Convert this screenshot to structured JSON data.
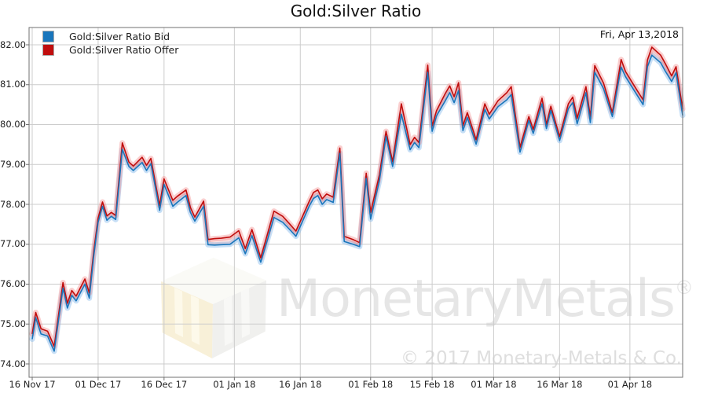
{
  "title": "Gold:Silver Ratio",
  "annotation_date": "Fri, Apr 13,2018",
  "legend": [
    {
      "label": "Gold:Silver Ratio Bid",
      "color": "#1976bc"
    },
    {
      "label": "Gold:Silver Ratio Offer",
      "color": "#c00d0d"
    }
  ],
  "watermark": {
    "brand": "MonetaryMetals",
    "reg": "®",
    "copyright": "© 2017 Monetary-Metals & Co."
  },
  "colors": {
    "bid_line": "#1976bc",
    "offer_line": "#c00d0d",
    "bid_glow": "rgba(130,185,235,0.45)",
    "offer_glow": "rgba(242,140,140,0.42)",
    "spread_fill": "rgba(230,85,85,0.15)",
    "grid": "#cccccc",
    "frame": "#707070",
    "background": "#ffffff"
  },
  "chart_data": {
    "type": "line",
    "title": "Gold:Silver Ratio",
    "xlabel": "",
    "ylabel": "",
    "grid": true,
    "legend_position": "top-left",
    "annotation": "Fri, Apr 13,2018",
    "x_axis": {
      "unit": "days since 16 Nov 2017",
      "range_days": [
        0,
        148
      ],
      "tick_days": [
        0,
        15,
        30,
        46,
        61,
        77,
        91,
        105,
        120,
        136
      ],
      "tick_labels": [
        "16 Nov 17",
        "01 Dec 17",
        "16 Dec 17",
        "01 Jan 18",
        "16 Jan 18",
        "01 Feb 18",
        "15 Feb 18",
        "01 Mar 18",
        "16 Mar 18",
        "01 Apr 18"
      ]
    },
    "y_axis": {
      "range": [
        73.65,
        82.43
      ],
      "tick_values": [
        74,
        75,
        76,
        77,
        78,
        79,
        80,
        81,
        82
      ],
      "tick_labels": [
        "74.00",
        "75.00",
        "76.00",
        "77.00",
        "78.00",
        "79.00",
        "80.00",
        "81.00",
        "82.00"
      ]
    },
    "series_names": [
      "Gold:Silver Ratio Bid",
      "Gold:Silver Ratio Offer"
    ],
    "points_format": "[day, bid, offer]",
    "points": [
      [
        0,
        74.62,
        74.75
      ],
      [
        0.8,
        75.16,
        75.29
      ],
      [
        2,
        74.75,
        74.88
      ],
      [
        3.5,
        74.7,
        74.82
      ],
      [
        5,
        74.32,
        74.44
      ],
      [
        7,
        75.9,
        76.04
      ],
      [
        8,
        75.4,
        75.52
      ],
      [
        9,
        75.72,
        75.84
      ],
      [
        10,
        75.58,
        75.7
      ],
      [
        12,
        76.0,
        76.13
      ],
      [
        13,
        75.65,
        75.78
      ],
      [
        14,
        76.7,
        76.82
      ],
      [
        15,
        77.55,
        77.66
      ],
      [
        16,
        77.95,
        78.06
      ],
      [
        17,
        77.6,
        77.71
      ],
      [
        18,
        77.7,
        77.8
      ],
      [
        19,
        77.62,
        77.72
      ],
      [
        20.5,
        79.38,
        79.54
      ],
      [
        22,
        78.95,
        79.06
      ],
      [
        23,
        78.85,
        78.96
      ],
      [
        25,
        79.05,
        79.18
      ],
      [
        26,
        78.85,
        78.98
      ],
      [
        27,
        79.02,
        79.15
      ],
      [
        28,
        78.45,
        78.56
      ],
      [
        29,
        77.85,
        77.97
      ],
      [
        30,
        78.5,
        78.64
      ],
      [
        32,
        77.95,
        78.1
      ],
      [
        33,
        78.05,
        78.2
      ],
      [
        35,
        78.22,
        78.36
      ],
      [
        36,
        77.8,
        77.92
      ],
      [
        37,
        77.58,
        77.68
      ],
      [
        39,
        77.95,
        78.08
      ],
      [
        40,
        76.99,
        77.12
      ],
      [
        41.5,
        76.98,
        77.14
      ],
      [
        43,
        76.99,
        77.15
      ],
      [
        45,
        77.0,
        77.18
      ],
      [
        47,
        77.16,
        77.34
      ],
      [
        48.5,
        76.76,
        76.89
      ],
      [
        50,
        77.22,
        77.37
      ],
      [
        52,
        76.55,
        76.66
      ],
      [
        53.5,
        77.1,
        77.24
      ],
      [
        55,
        77.67,
        77.83
      ],
      [
        57,
        77.55,
        77.7
      ],
      [
        58.5,
        77.38,
        77.52
      ],
      [
        60,
        77.2,
        77.33
      ],
      [
        62,
        77.7,
        77.82
      ],
      [
        63,
        77.95,
        78.07
      ],
      [
        64,
        78.15,
        78.3
      ],
      [
        65,
        78.22,
        78.36
      ],
      [
        66,
        78.0,
        78.14
      ],
      [
        67,
        78.12,
        78.26
      ],
      [
        68.5,
        78.05,
        78.18
      ],
      [
        70,
        79.28,
        79.41
      ],
      [
        71,
        77.07,
        77.2
      ],
      [
        73,
        77.0,
        77.12
      ],
      [
        74.5,
        76.94,
        77.04
      ],
      [
        76,
        78.65,
        78.78
      ],
      [
        77,
        77.63,
        77.8
      ],
      [
        79,
        78.6,
        78.74
      ],
      [
        80.5,
        79.7,
        79.83
      ],
      [
        82,
        78.95,
        79.07
      ],
      [
        84,
        80.26,
        80.52
      ],
      [
        86,
        79.37,
        79.5
      ],
      [
        87,
        79.55,
        79.68
      ],
      [
        88,
        79.42,
        79.55
      ],
      [
        90,
        81.31,
        81.49
      ],
      [
        91,
        79.83,
        79.96
      ],
      [
        92,
        80.22,
        80.35
      ],
      [
        94,
        80.6,
        80.78
      ],
      [
        95,
        80.8,
        80.97
      ],
      [
        96,
        80.55,
        80.7
      ],
      [
        97,
        80.85,
        81.05
      ],
      [
        98,
        79.85,
        79.97
      ],
      [
        99,
        80.18,
        80.3
      ],
      [
        101,
        79.51,
        79.62
      ],
      [
        103,
        80.38,
        80.52
      ],
      [
        104,
        80.14,
        80.26
      ],
      [
        106,
        80.45,
        80.6
      ],
      [
        108,
        80.62,
        80.8
      ],
      [
        109,
        80.75,
        80.95
      ],
      [
        111,
        79.31,
        79.43
      ],
      [
        113,
        80.1,
        80.2
      ],
      [
        114,
        79.78,
        79.88
      ],
      [
        116,
        80.52,
        80.66
      ],
      [
        117,
        79.9,
        80.0
      ],
      [
        118,
        80.35,
        80.46
      ],
      [
        120,
        79.6,
        79.7
      ],
      [
        122,
        80.4,
        80.52
      ],
      [
        123,
        80.55,
        80.69
      ],
      [
        124,
        80.02,
        80.16
      ],
      [
        126,
        80.8,
        80.95
      ],
      [
        127,
        80.05,
        80.19
      ],
      [
        128,
        81.31,
        81.48
      ],
      [
        130,
        80.9,
        81.04
      ],
      [
        132,
        80.2,
        80.3
      ],
      [
        134,
        81.44,
        81.63
      ],
      [
        135,
        81.2,
        81.33
      ],
      [
        137,
        80.85,
        80.97
      ],
      [
        139,
        80.5,
        80.62
      ],
      [
        140,
        81.45,
        81.62
      ],
      [
        141,
        81.74,
        81.94
      ],
      [
        143,
        81.55,
        81.74
      ],
      [
        144,
        81.35,
        81.54
      ],
      [
        145.5,
        81.08,
        81.22
      ],
      [
        146.5,
        81.3,
        81.45
      ],
      [
        148,
        80.23,
        80.39
      ]
    ]
  }
}
